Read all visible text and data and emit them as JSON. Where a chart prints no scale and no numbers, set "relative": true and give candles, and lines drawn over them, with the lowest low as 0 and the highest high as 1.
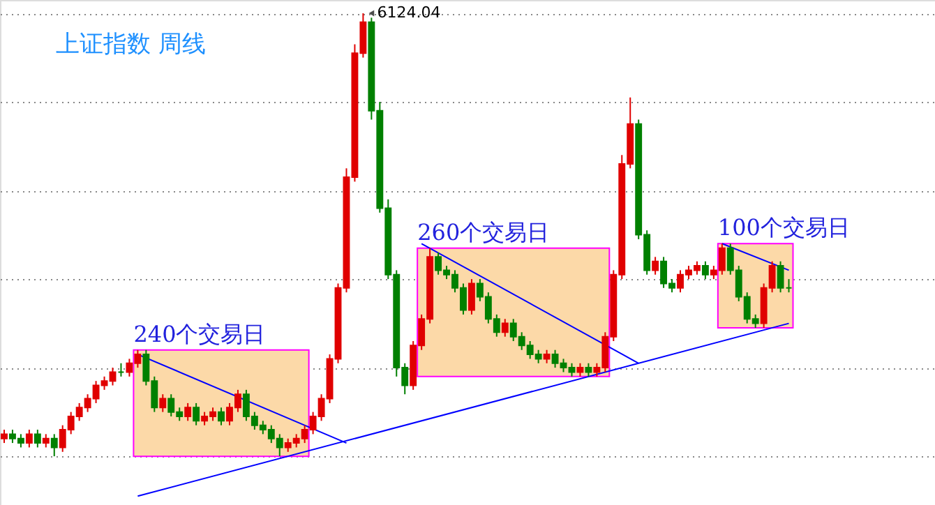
{
  "chart_data": {
    "type": "candlestick",
    "relative": true,
    "title": "上证指数  周线",
    "tick_labels": false,
    "grid": "y",
    "categories": [
      null,
      null,
      null,
      null,
      null,
      null,
      null,
      null,
      null,
      null,
      null,
      null,
      null,
      null,
      null,
      null,
      null,
      null,
      null,
      null,
      null,
      null,
      null,
      null,
      null,
      null,
      null,
      null,
      null,
      null,
      null,
      null,
      null,
      null,
      null,
      null,
      null,
      null,
      null,
      null,
      null,
      null,
      null,
      null,
      null,
      null,
      null,
      null,
      null,
      null,
      null,
      null,
      null,
      null,
      null,
      null,
      null,
      null,
      null,
      null,
      null,
      null,
      null,
      null,
      null,
      null,
      null,
      null,
      null,
      null,
      null,
      null,
      null,
      null,
      null,
      null,
      null,
      null,
      null,
      null,
      null,
      null,
      null,
      null,
      null,
      null,
      null,
      null,
      null,
      null,
      null,
      null,
      null,
      null,
      null
    ],
    "colors": [
      "#e00000",
      "#008000",
      "#008000",
      "#e00000",
      "#008000",
      "#e00000",
      "#008000",
      "#e00000",
      "#e00000",
      "#e00000",
      "#e00000",
      "#e00000",
      "#e00000",
      "#e00000",
      "#008000",
      "#e00000",
      "#e00000",
      "#008000",
      "#008000",
      "#e00000",
      "#008000",
      "#008000",
      "#e00000",
      "#008000",
      "#e00000",
      "#e00000",
      "#008000",
      "#e00000",
      "#e00000",
      "#008000",
      "#008000",
      "#008000",
      "#008000",
      "#008000",
      "#e00000",
      "#e00000",
      "#e00000",
      "#e00000",
      "#e00000",
      "#e00000",
      "#e00000",
      "#e00000",
      "#e00000",
      "#e00000",
      "#008000",
      "#008000",
      "#008000",
      "#008000",
      "#008000",
      "#e00000",
      "#e00000",
      "#e00000",
      "#008000",
      "#008000",
      "#008000",
      "#008000",
      "#e00000",
      "#008000",
      "#008000",
      "#008000",
      "#e00000",
      "#008000",
      "#008000",
      "#008000",
      "#008000",
      "#e00000",
      "#008000",
      "#008000",
      "#008000",
      "#e00000",
      "#008000",
      "#e00000",
      "#e00000",
      "#e00000",
      "#e00000",
      "#e00000",
      "#008000",
      "#008000",
      "#e00000",
      "#008000",
      "#008000",
      "#e00000",
      "#e00000",
      "#e00000",
      "#008000",
      "#e00000",
      "#e00000",
      "#008000",
      "#008000",
      "#008000",
      "#008000",
      "#e00000",
      "#e00000",
      "#008000",
      "#008000"
    ],
    "ohlc": [
      [
        0.04,
        0.06,
        0.03,
        0.05
      ],
      [
        0.05,
        0.06,
        0.03,
        0.04
      ],
      [
        0.04,
        0.05,
        0.02,
        0.03
      ],
      [
        0.03,
        0.06,
        0.02,
        0.05
      ],
      [
        0.05,
        0.06,
        0.02,
        0.03
      ],
      [
        0.03,
        0.05,
        0.02,
        0.04
      ],
      [
        0.04,
        0.05,
        0.0,
        0.02
      ],
      [
        0.02,
        0.07,
        0.01,
        0.06
      ],
      [
        0.06,
        0.1,
        0.05,
        0.09
      ],
      [
        0.09,
        0.12,
        0.08,
        0.11
      ],
      [
        0.11,
        0.14,
        0.1,
        0.13
      ],
      [
        0.13,
        0.17,
        0.12,
        0.16
      ],
      [
        0.16,
        0.18,
        0.15,
        0.17
      ],
      [
        0.17,
        0.2,
        0.16,
        0.19
      ],
      [
        0.19,
        0.21,
        0.18,
        0.19
      ],
      [
        0.19,
        0.22,
        0.18,
        0.21
      ],
      [
        0.21,
        0.24,
        0.2,
        0.23
      ],
      [
        0.23,
        0.24,
        0.16,
        0.17
      ],
      [
        0.17,
        0.18,
        0.1,
        0.11
      ],
      [
        0.11,
        0.14,
        0.1,
        0.13
      ],
      [
        0.13,
        0.14,
        0.09,
        0.1
      ],
      [
        0.1,
        0.11,
        0.08,
        0.09
      ],
      [
        0.09,
        0.12,
        0.08,
        0.11
      ],
      [
        0.11,
        0.12,
        0.07,
        0.08
      ],
      [
        0.08,
        0.1,
        0.07,
        0.09
      ],
      [
        0.09,
        0.11,
        0.08,
        0.1
      ],
      [
        0.1,
        0.11,
        0.07,
        0.08
      ],
      [
        0.08,
        0.12,
        0.07,
        0.11
      ],
      [
        0.11,
        0.15,
        0.1,
        0.14
      ],
      [
        0.14,
        0.15,
        0.08,
        0.09
      ],
      [
        0.09,
        0.1,
        0.06,
        0.07
      ],
      [
        0.07,
        0.08,
        0.05,
        0.06
      ],
      [
        0.06,
        0.07,
        0.03,
        0.04
      ],
      [
        0.04,
        0.05,
        0.0,
        0.02
      ],
      [
        0.02,
        0.04,
        0.01,
        0.03
      ],
      [
        0.03,
        0.05,
        0.02,
        0.04
      ],
      [
        0.04,
        0.07,
        0.03,
        0.06
      ],
      [
        0.06,
        0.1,
        0.05,
        0.09
      ],
      [
        0.09,
        0.14,
        0.08,
        0.13
      ],
      [
        0.13,
        0.23,
        0.12,
        0.22
      ],
      [
        0.22,
        0.39,
        0.21,
        0.38
      ],
      [
        0.38,
        0.65,
        0.37,
        0.63
      ],
      [
        0.63,
        0.93,
        0.62,
        0.91
      ],
      [
        0.91,
        1.0,
        0.9,
        0.98
      ],
      [
        0.98,
        0.99,
        0.76,
        0.78
      ],
      [
        0.78,
        0.8,
        0.55,
        0.56
      ],
      [
        0.56,
        0.58,
        0.4,
        0.41
      ],
      [
        0.41,
        0.42,
        0.18,
        0.2
      ],
      [
        0.2,
        0.21,
        0.14,
        0.16
      ],
      [
        0.16,
        0.26,
        0.15,
        0.25
      ],
      [
        0.25,
        0.32,
        0.24,
        0.31
      ],
      [
        0.31,
        0.47,
        0.3,
        0.45
      ],
      [
        0.45,
        0.46,
        0.41,
        0.42
      ],
      [
        0.42,
        0.43,
        0.4,
        0.41
      ],
      [
        0.41,
        0.42,
        0.37,
        0.38
      ],
      [
        0.38,
        0.39,
        0.32,
        0.33
      ],
      [
        0.33,
        0.4,
        0.32,
        0.39
      ],
      [
        0.39,
        0.4,
        0.35,
        0.36
      ],
      [
        0.36,
        0.37,
        0.3,
        0.31
      ],
      [
        0.31,
        0.32,
        0.27,
        0.28
      ],
      [
        0.28,
        0.31,
        0.27,
        0.3
      ],
      [
        0.3,
        0.31,
        0.26,
        0.27
      ],
      [
        0.27,
        0.28,
        0.24,
        0.25
      ],
      [
        0.25,
        0.26,
        0.22,
        0.23
      ],
      [
        0.23,
        0.24,
        0.21,
        0.22
      ],
      [
        0.22,
        0.24,
        0.21,
        0.23
      ],
      [
        0.23,
        0.24,
        0.2,
        0.21
      ],
      [
        0.21,
        0.22,
        0.19,
        0.2
      ],
      [
        0.2,
        0.21,
        0.18,
        0.19
      ],
      [
        0.19,
        0.21,
        0.18,
        0.2
      ],
      [
        0.2,
        0.21,
        0.18,
        0.19
      ],
      [
        0.19,
        0.21,
        0.18,
        0.2
      ],
      [
        0.2,
        0.28,
        0.19,
        0.27
      ],
      [
        0.27,
        0.42,
        0.26,
        0.41
      ],
      [
        0.41,
        0.68,
        0.4,
        0.66
      ],
      [
        0.66,
        0.81,
        0.65,
        0.75
      ],
      [
        0.75,
        0.76,
        0.49,
        0.5
      ],
      [
        0.5,
        0.51,
        0.41,
        0.42
      ],
      [
        0.42,
        0.45,
        0.41,
        0.44
      ],
      [
        0.44,
        0.45,
        0.38,
        0.39
      ],
      [
        0.39,
        0.4,
        0.37,
        0.38
      ],
      [
        0.38,
        0.42,
        0.37,
        0.41
      ],
      [
        0.41,
        0.43,
        0.4,
        0.42
      ],
      [
        0.42,
        0.44,
        0.41,
        0.43
      ],
      [
        0.43,
        0.44,
        0.4,
        0.41
      ],
      [
        0.41,
        0.43,
        0.4,
        0.42
      ],
      [
        0.42,
        0.48,
        0.41,
        0.47
      ],
      [
        0.47,
        0.48,
        0.41,
        0.42
      ],
      [
        0.42,
        0.43,
        0.35,
        0.36
      ],
      [
        0.36,
        0.37,
        0.3,
        0.31
      ],
      [
        0.31,
        0.32,
        0.29,
        0.3
      ],
      [
        0.3,
        0.39,
        0.29,
        0.38
      ],
      [
        0.38,
        0.44,
        0.37,
        0.43
      ],
      [
        0.43,
        0.44,
        0.37,
        0.38
      ],
      [
        0.38,
        0.4,
        0.37,
        0.38
      ]
    ],
    "series": [
      {
        "type": "line",
        "color": "#0000ff",
        "values": [
          null,
          null,
          null,
          null,
          null,
          null,
          null,
          null,
          null,
          null,
          null,
          null,
          null,
          null,
          null,
          null,
          -0.09,
          null,
          null,
          null,
          null,
          null,
          null,
          null,
          null,
          null,
          null,
          null,
          null,
          null,
          null,
          null,
          null,
          null,
          null,
          null,
          null,
          null,
          null,
          null,
          null,
          null,
          null,
          null,
          null,
          null,
          null,
          null,
          null,
          null,
          null,
          null,
          null,
          null,
          null,
          null,
          null,
          null,
          null,
          null,
          null,
          null,
          null,
          null,
          null,
          null,
          null,
          null,
          null,
          null,
          null,
          null,
          null,
          null,
          null,
          null,
          null,
          null,
          null,
          null,
          null,
          null,
          null,
          null,
          null,
          null,
          null,
          null,
          null,
          null,
          null,
          null,
          null,
          null,
          0.3
        ]
      },
      {
        "type": "line",
        "color": "#0000ff",
        "values": [
          null,
          null,
          null,
          null,
          null,
          null,
          null,
          null,
          null,
          null,
          null,
          null,
          null,
          null,
          null,
          null,
          0.23,
          null,
          null,
          null,
          null,
          null,
          null,
          null,
          null,
          null,
          null,
          null,
          null,
          null,
          null,
          null,
          null,
          null,
          null,
          null,
          null,
          null,
          null,
          null,
          null,
          0.03,
          null,
          null,
          null,
          null,
          null,
          null,
          null,
          null,
          null,
          null,
          null,
          null,
          null,
          null,
          null,
          null,
          null,
          null,
          null,
          null,
          null,
          null,
          null,
          null,
          null,
          null,
          null,
          null,
          null,
          null,
          null,
          null,
          null,
          null,
          null,
          null,
          null,
          null,
          null,
          null,
          null,
          null,
          null,
          null,
          null,
          null,
          null,
          null,
          null,
          null,
          null,
          null,
          null
        ]
      },
      {
        "type": "line",
        "color": "#0000ff",
        "values": [
          null,
          null,
          null,
          null,
          null,
          null,
          null,
          null,
          null,
          null,
          null,
          null,
          null,
          null,
          null,
          null,
          null,
          null,
          null,
          null,
          null,
          null,
          null,
          null,
          null,
          null,
          null,
          null,
          null,
          null,
          null,
          null,
          null,
          null,
          null,
          null,
          null,
          null,
          null,
          null,
          null,
          null,
          null,
          null,
          null,
          null,
          null,
          null,
          null,
          null,
          0.48,
          null,
          null,
          null,
          null,
          null,
          null,
          null,
          null,
          null,
          null,
          null,
          null,
          null,
          null,
          null,
          null,
          null,
          null,
          null,
          null,
          null,
          null,
          null,
          null,
          null,
          0.21,
          null,
          null,
          null,
          null,
          null,
          null,
          null,
          null,
          null,
          null,
          null,
          null,
          null,
          null,
          null,
          null,
          null,
          null
        ]
      },
      {
        "type": "line",
        "color": "#0000ff",
        "values": [
          null,
          null,
          null,
          null,
          null,
          null,
          null,
          null,
          null,
          null,
          null,
          null,
          null,
          null,
          null,
          null,
          null,
          null,
          null,
          null,
          null,
          null,
          null,
          null,
          null,
          null,
          null,
          null,
          null,
          null,
          null,
          null,
          null,
          null,
          null,
          null,
          null,
          null,
          null,
          null,
          null,
          null,
          null,
          null,
          null,
          null,
          null,
          null,
          null,
          null,
          null,
          null,
          null,
          null,
          null,
          null,
          null,
          null,
          null,
          null,
          null,
          null,
          null,
          null,
          null,
          null,
          null,
          null,
          null,
          null,
          null,
          null,
          null,
          null,
          null,
          null,
          null,
          null,
          null,
          null,
          null,
          null,
          null,
          null,
          null,
          null,
          0.48,
          null,
          null,
          null,
          null,
          null,
          null,
          null,
          0.42
        ]
      }
    ],
    "annotations": [
      "6124.04",
      "240个交易日",
      "260个交易日",
      "100个交易日"
    ]
  }
}
